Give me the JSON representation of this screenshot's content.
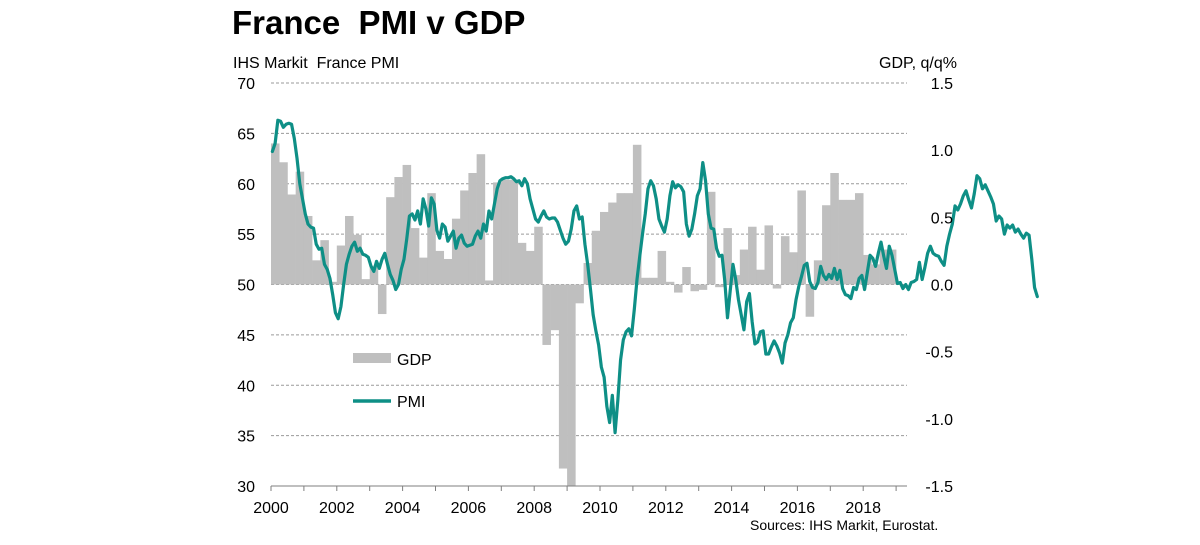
{
  "chart_data": {
    "type": "bar+line",
    "title": "France  PMI v GDP",
    "ylabel_left": "IHS Markit  France PMI",
    "ylabel_right": "GDP, q/q%",
    "source": "Sources: IHS Markit, Eurostat.",
    "x_range": [
      2000,
      2019.4
    ],
    "x_ticks": [
      "2000",
      "2002",
      "2004",
      "2006",
      "2008",
      "2010",
      "2012",
      "2014",
      "2016",
      "2018"
    ],
    "yleft_range": [
      30,
      70
    ],
    "yleft_ticks": [
      "30",
      "35",
      "40",
      "45",
      "50",
      "55",
      "60",
      "65",
      "70"
    ],
    "yright_range": [
      -1.5,
      1.5
    ],
    "yright_ticks": [
      "-1.5",
      "-1.0",
      "-0.5",
      "0.0",
      "0.5",
      "1.0",
      "1.5"
    ],
    "grid": "horizontal dashed",
    "legend": {
      "position": "lower-left",
      "entries": [
        "GDP",
        "PMI"
      ]
    },
    "colors": {
      "gdp": "#bfbfbf",
      "pmi": "#0e8f86",
      "grid": "#9a9a9a"
    },
    "gdp_start": "2000Q1",
    "gdp_series": {
      "name": "GDP",
      "axis": "right",
      "frequency": "quarterly",
      "values": [
        1.05,
        0.91,
        0.67,
        0.84,
        0.51,
        0.18,
        0.33,
        0.02,
        0.29,
        0.51,
        0.37,
        0.04,
        0.14,
        -0.22,
        0.65,
        0.8,
        0.89,
        0.42,
        0.2,
        0.68,
        0.25,
        0.19,
        0.49,
        0.7,
        0.83,
        0.97,
        0.03,
        0.76,
        0.78,
        0.78,
        0.31,
        0.25,
        0.43,
        -0.45,
        -0.34,
        -1.37,
        -1.55,
        -0.14,
        0.16,
        0.4,
        0.54,
        0.61,
        0.68,
        0.68,
        1.04,
        0.05,
        0.05,
        0.25,
        0.02,
        -0.06,
        0.13,
        -0.05,
        -0.04,
        0.69,
        -0.02,
        0.42,
        0.07,
        0.26,
        0.43,
        0.11,
        0.44,
        -0.03,
        0.36,
        0.24,
        0.7,
        -0.24,
        0.18,
        0.59,
        0.83,
        0.63,
        0.63,
        0.68,
        0.22,
        0.15,
        0.26,
        0.26
      ]
    },
    "pmi_start": "2000-01",
    "pmi_series": {
      "name": "PMI",
      "axis": "left",
      "frequency": "monthly",
      "values": [
        63.2,
        64.0,
        66.3,
        66.2,
        65.6,
        65.9,
        66.0,
        65.9,
        64.5,
        62.5,
        60.0,
        58.5,
        57.0,
        56.0,
        55.7,
        55.6,
        54.0,
        53.5,
        53.6,
        52.0,
        51.5,
        50.6,
        49.0,
        47.2,
        46.6,
        47.8,
        50.0,
        52.0,
        53.0,
        53.8,
        54.2,
        53.3,
        53.6,
        53.0,
        52.9,
        52.7,
        51.8,
        51.3,
        52.3,
        51.6,
        52.5,
        53.1,
        52.0,
        51.0,
        50.4,
        49.5,
        50.0,
        51.5,
        52.5,
        54.5,
        56.8,
        57.0,
        56.4,
        57.3,
        56.0,
        58.5,
        57.5,
        55.8,
        58.6,
        58.0,
        55.4,
        54.6,
        56.0,
        55.7,
        54.3,
        54.8,
        55.3,
        53.6,
        54.6,
        54.9,
        54.1,
        53.8,
        53.9,
        54.0,
        54.8,
        55.3,
        54.6,
        56.0,
        55.3,
        57.3,
        56.5,
        58.0,
        59.5,
        60.3,
        60.5,
        60.6,
        60.6,
        60.7,
        60.5,
        60.2,
        60.3,
        59.8,
        60.5,
        60.0,
        58.5,
        57.5,
        56.5,
        56.2,
        56.8,
        57.3,
        56.7,
        56.5,
        56.6,
        56.6,
        56.2,
        55.4,
        54.6,
        54.0,
        54.3,
        55.5,
        57.3,
        57.8,
        56.5,
        56.7,
        54.0,
        52.0,
        49.6,
        47.0,
        45.4,
        44.0,
        41.8,
        40.8,
        37.9,
        36.3,
        39.0,
        35.3,
        38.5,
        42.5,
        44.5,
        45.3,
        45.6,
        44.9,
        47.5,
        50.5,
        52.8,
        55.0,
        57.0,
        59.5,
        60.3,
        59.8,
        58.5,
        56.5,
        55.8,
        55.2,
        56.5,
        58.8,
        60.2,
        59.6,
        59.9,
        59.7,
        59.2,
        56.0,
        54.8,
        55.5,
        57.0,
        58.8,
        59.5,
        62.1,
        60.3,
        57.0,
        55.6,
        55.5,
        53.6,
        52.8,
        52.9,
        50.4,
        46.7,
        49.4,
        52.0,
        50.5,
        48.5,
        47.0,
        45.5,
        48.3,
        49.1,
        46.3,
        44.1,
        44.3,
        45.3,
        45.4,
        43.1,
        43.1,
        43.8,
        44.4,
        43.9,
        43.2,
        42.2,
        44.2,
        45.0,
        46.2,
        46.7,
        48.5,
        49.8,
        50.8,
        51.9,
        52.1,
        50.3,
        49.7,
        49.6,
        50.2,
        51.8,
        50.9,
        50.5,
        51.0,
        50.6,
        51.6,
        50.5,
        51.4,
        49.6,
        49.0,
        48.9,
        48.6,
        49.7,
        49.5,
        50.6,
        50.9,
        49.5,
        51.2,
        52.9,
        52.6,
        51.8,
        53.1,
        54.2,
        52.8,
        51.6,
        53.8,
        52.9,
        51.5,
        50.1,
        50.2,
        49.6,
        50.0,
        49.5,
        50.2,
        50.3,
        50.5,
        52.2,
        50.5,
        51.7,
        53.1,
        53.8,
        53.1,
        52.9,
        52.8,
        52.3,
        51.9,
        53.8,
        55.0,
        56.0,
        57.8,
        57.4,
        58.0,
        58.8,
        59.3,
        58.4,
        57.6,
        59.0,
        60.8,
        60.5,
        59.5,
        59.9,
        59.3,
        58.7,
        58.0,
        56.3,
        56.8,
        56.5,
        55.0,
        55.9,
        55.6,
        55.9,
        55.2,
        55.5,
        55.0,
        54.6,
        55.1,
        54.9,
        52.5,
        49.7,
        48.8
      ]
    }
  }
}
